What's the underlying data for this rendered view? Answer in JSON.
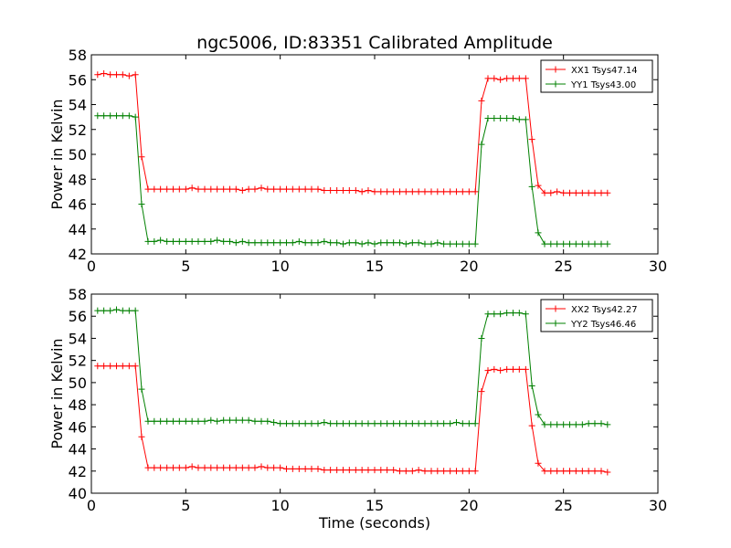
{
  "figure": {
    "title": "ngc5006, ID:83351 Calibrated Amplitude",
    "xlabel": "Time (seconds)"
  },
  "chart_data": [
    {
      "type": "line",
      "title": "ngc5006, ID:83351 Calibrated Amplitude",
      "xlabel": "",
      "ylabel": "Power in Kelvin",
      "xlim": [
        0,
        30
      ],
      "ylim": [
        42,
        58
      ],
      "xticks": [
        0,
        5,
        10,
        15,
        20,
        25,
        30
      ],
      "yticks": [
        42,
        44,
        46,
        48,
        50,
        52,
        54,
        56,
        58
      ],
      "grid": false,
      "legend_position": "top-right",
      "x": [
        0.33,
        0.66,
        1.0,
        1.33,
        1.66,
        2.0,
        2.33,
        2.66,
        3.0,
        3.33,
        3.66,
        4.0,
        4.33,
        4.66,
        5.0,
        5.33,
        5.66,
        6.0,
        6.33,
        6.66,
        7.0,
        7.33,
        7.66,
        8.0,
        8.33,
        8.66,
        9.0,
        9.33,
        9.66,
        10.0,
        10.33,
        10.66,
        11.0,
        11.33,
        11.66,
        12.0,
        12.33,
        12.66,
        13.0,
        13.33,
        13.66,
        14.0,
        14.33,
        14.66,
        15.0,
        15.33,
        15.66,
        16.0,
        16.33,
        16.66,
        17.0,
        17.33,
        17.66,
        18.0,
        18.33,
        18.66,
        19.0,
        19.33,
        19.66,
        20.0,
        20.33,
        20.66,
        21.0,
        21.33,
        21.66,
        22.0,
        22.33,
        22.66,
        23.0,
        23.33,
        23.66,
        24.0,
        24.33,
        24.66,
        25.0,
        25.33,
        25.66,
        26.0,
        26.33,
        26.66,
        27.0,
        27.33
      ],
      "series": [
        {
          "name": "XX1 Tsys47.14",
          "color": "#ff0000",
          "values": [
            56.4,
            56.5,
            56.4,
            56.4,
            56.4,
            56.3,
            56.4,
            49.8,
            47.2,
            47.2,
            47.2,
            47.2,
            47.2,
            47.2,
            47.2,
            47.3,
            47.2,
            47.2,
            47.2,
            47.2,
            47.2,
            47.2,
            47.2,
            47.1,
            47.2,
            47.2,
            47.3,
            47.2,
            47.2,
            47.2,
            47.2,
            47.2,
            47.2,
            47.2,
            47.2,
            47.2,
            47.1,
            47.1,
            47.1,
            47.1,
            47.1,
            47.1,
            47.0,
            47.1,
            47.0,
            47.0,
            47.0,
            47.0,
            47.0,
            47.0,
            47.0,
            47.0,
            47.0,
            47.0,
            47.0,
            47.0,
            47.0,
            47.0,
            47.0,
            47.0,
            47.0,
            54.3,
            56.1,
            56.1,
            56.0,
            56.1,
            56.1,
            56.1,
            56.1,
            51.2,
            47.5,
            46.9,
            46.9,
            47.0,
            46.9,
            46.9,
            46.9,
            46.9,
            46.9,
            46.9,
            46.9,
            46.9
          ]
        },
        {
          "name": "YY1 Tsys43.00",
          "color": "#008000",
          "values": [
            53.1,
            53.1,
            53.1,
            53.1,
            53.1,
            53.1,
            53.0,
            46.0,
            43.0,
            43.0,
            43.1,
            43.0,
            43.0,
            43.0,
            43.0,
            43.0,
            43.0,
            43.0,
            43.0,
            43.1,
            43.0,
            43.0,
            42.9,
            43.0,
            42.9,
            42.9,
            42.9,
            42.9,
            42.9,
            42.9,
            42.9,
            42.9,
            43.0,
            42.9,
            42.9,
            42.9,
            43.0,
            42.9,
            42.9,
            42.8,
            42.9,
            42.9,
            42.8,
            42.9,
            42.8,
            42.9,
            42.9,
            42.9,
            42.9,
            42.8,
            42.9,
            42.9,
            42.8,
            42.8,
            42.9,
            42.8,
            42.8,
            42.8,
            42.8,
            42.8,
            42.8,
            50.8,
            52.9,
            52.9,
            52.9,
            52.9,
            52.9,
            52.8,
            52.8,
            47.4,
            43.7,
            42.8,
            42.8,
            42.8,
            42.8,
            42.8,
            42.8,
            42.8,
            42.8,
            42.8,
            42.8,
            42.8
          ]
        }
      ]
    },
    {
      "type": "line",
      "title": "",
      "xlabel": "Time (seconds)",
      "ylabel": "Power in Kelvin",
      "xlim": [
        0,
        30
      ],
      "ylim": [
        40,
        58
      ],
      "xticks": [
        0,
        5,
        10,
        15,
        20,
        25,
        30
      ],
      "yticks": [
        40,
        42,
        44,
        46,
        48,
        50,
        52,
        54,
        56,
        58
      ],
      "grid": false,
      "legend_position": "top-right",
      "x": [
        0.33,
        0.66,
        1.0,
        1.33,
        1.66,
        2.0,
        2.33,
        2.66,
        3.0,
        3.33,
        3.66,
        4.0,
        4.33,
        4.66,
        5.0,
        5.33,
        5.66,
        6.0,
        6.33,
        6.66,
        7.0,
        7.33,
        7.66,
        8.0,
        8.33,
        8.66,
        9.0,
        9.33,
        9.66,
        10.0,
        10.33,
        10.66,
        11.0,
        11.33,
        11.66,
        12.0,
        12.33,
        12.66,
        13.0,
        13.33,
        13.66,
        14.0,
        14.33,
        14.66,
        15.0,
        15.33,
        15.66,
        16.0,
        16.33,
        16.66,
        17.0,
        17.33,
        17.66,
        18.0,
        18.33,
        18.66,
        19.0,
        19.33,
        19.66,
        20.0,
        20.33,
        20.66,
        21.0,
        21.33,
        21.66,
        22.0,
        22.33,
        22.66,
        23.0,
        23.33,
        23.66,
        24.0,
        24.33,
        24.66,
        25.0,
        25.33,
        25.66,
        26.0,
        26.33,
        26.66,
        27.0,
        27.33
      ],
      "series": [
        {
          "name": "XX2 Tsys42.27",
          "color": "#ff0000",
          "values": [
            51.5,
            51.5,
            51.5,
            51.5,
            51.5,
            51.5,
            51.5,
            45.1,
            42.3,
            42.3,
            42.3,
            42.3,
            42.3,
            42.3,
            42.3,
            42.4,
            42.3,
            42.3,
            42.3,
            42.3,
            42.3,
            42.3,
            42.3,
            42.3,
            42.3,
            42.3,
            42.4,
            42.3,
            42.3,
            42.3,
            42.2,
            42.2,
            42.2,
            42.2,
            42.2,
            42.2,
            42.1,
            42.1,
            42.1,
            42.1,
            42.1,
            42.1,
            42.1,
            42.1,
            42.1,
            42.1,
            42.1,
            42.1,
            42.0,
            42.0,
            42.0,
            42.1,
            42.0,
            42.0,
            42.0,
            42.0,
            42.0,
            42.0,
            42.0,
            42.0,
            42.0,
            49.2,
            51.1,
            51.2,
            51.1,
            51.2,
            51.2,
            51.2,
            51.2,
            46.1,
            42.7,
            42.0,
            42.0,
            42.0,
            42.0,
            42.0,
            42.0,
            42.0,
            42.0,
            42.0,
            42.0,
            41.9
          ]
        },
        {
          "name": "YY2 Tsys46.46",
          "color": "#008000",
          "values": [
            56.5,
            56.5,
            56.5,
            56.6,
            56.5,
            56.5,
            56.5,
            49.4,
            46.5,
            46.5,
            46.5,
            46.5,
            46.5,
            46.5,
            46.5,
            46.5,
            46.5,
            46.5,
            46.6,
            46.5,
            46.6,
            46.6,
            46.6,
            46.6,
            46.6,
            46.5,
            46.5,
            46.5,
            46.4,
            46.3,
            46.3,
            46.3,
            46.3,
            46.3,
            46.3,
            46.3,
            46.4,
            46.3,
            46.3,
            46.3,
            46.3,
            46.3,
            46.3,
            46.3,
            46.3,
            46.3,
            46.3,
            46.3,
            46.3,
            46.3,
            46.3,
            46.3,
            46.3,
            46.3,
            46.3,
            46.3,
            46.3,
            46.4,
            46.3,
            46.3,
            46.3,
            54.0,
            56.2,
            56.2,
            56.2,
            56.3,
            56.3,
            56.3,
            56.2,
            49.7,
            47.1,
            46.2,
            46.2,
            46.2,
            46.2,
            46.2,
            46.2,
            46.2,
            46.3,
            46.3,
            46.3,
            46.2
          ]
        }
      ]
    }
  ]
}
